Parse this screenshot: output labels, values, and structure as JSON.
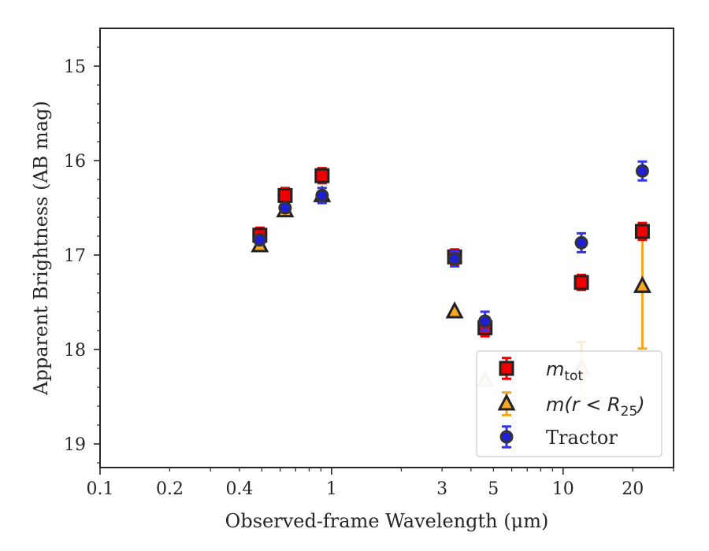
{
  "chart_data": {
    "type": "scatter",
    "title": "",
    "xlabel": "Observed-frame Wavelength (μm)",
    "ylabel": "Apparent Brightness (AB mag)",
    "xscale": "log",
    "xlim": [
      0.1,
      30
    ],
    "ylim": [
      19.25,
      14.6
    ],
    "y_inverted": true,
    "grid": false,
    "legend_position": "lower-right",
    "x_ticks": [
      {
        "value": 0.1,
        "label": "0.1"
      },
      {
        "value": 0.2,
        "label": "0.2"
      },
      {
        "value": 0.4,
        "label": "0.4"
      },
      {
        "value": 1,
        "label": "1"
      },
      {
        "value": 3,
        "label": "3"
      },
      {
        "value": 5,
        "label": "5"
      },
      {
        "value": 10,
        "label": "10"
      },
      {
        "value": 20,
        "label": "20"
      }
    ],
    "y_ticks": [
      {
        "value": 15,
        "label": "15"
      },
      {
        "value": 16,
        "label": "16"
      },
      {
        "value": 17,
        "label": "17"
      },
      {
        "value": 18,
        "label": "18"
      },
      {
        "value": 19,
        "label": "19"
      }
    ],
    "series": [
      {
        "name": "m_tot",
        "marker": "square",
        "face_color": "#ee0000",
        "edge_color": "#222222",
        "error_color": "#ee0000",
        "points": [
          {
            "x": 0.49,
            "y": 16.79,
            "err": 0.08
          },
          {
            "x": 0.63,
            "y": 16.37,
            "err": 0.08
          },
          {
            "x": 0.91,
            "y": 16.16,
            "err": 0.08
          },
          {
            "x": 3.4,
            "y": 17.02,
            "err": 0.08
          },
          {
            "x": 4.6,
            "y": 17.77,
            "err": 0.09
          },
          {
            "x": 12.0,
            "y": 17.29,
            "err": 0.08
          },
          {
            "x": 22.0,
            "y": 16.75,
            "err": 0.09
          }
        ]
      },
      {
        "name": "m(r < R25)",
        "marker": "triangle",
        "face_color": "#f5a623",
        "edge_color": "#222222",
        "error_color": "#f5a623",
        "points": [
          {
            "x": 0.49,
            "y": 16.9,
            "err": 0.0
          },
          {
            "x": 0.63,
            "y": 16.53,
            "err": 0.0
          },
          {
            "x": 0.91,
            "y": 16.37,
            "err": 0.0
          },
          {
            "x": 3.4,
            "y": 17.6,
            "err": 0.0
          },
          {
            "x": 4.6,
            "y": 18.33,
            "err": 0.0,
            "faded": true
          },
          {
            "x": 12.0,
            "y": 18.2,
            "err": 0.28,
            "faded": true
          },
          {
            "x": 22.0,
            "y": 17.33,
            "err": 0.66
          }
        ]
      },
      {
        "name": "Tractor",
        "marker": "circle",
        "face_color": "#1f1fd6",
        "edge_color": "#333333",
        "error_color": "#3333ee",
        "points": [
          {
            "x": 0.49,
            "y": 16.84,
            "err": 0.05
          },
          {
            "x": 0.63,
            "y": 16.5,
            "err": 0.04
          },
          {
            "x": 0.91,
            "y": 16.37,
            "err": 0.08
          },
          {
            "x": 3.4,
            "y": 17.04,
            "err": 0.08
          },
          {
            "x": 4.6,
            "y": 17.7,
            "err": 0.1
          },
          {
            "x": 12.0,
            "y": 16.87,
            "err": 0.1
          },
          {
            "x": 22.0,
            "y": 16.11,
            "err": 0.1
          }
        ]
      }
    ]
  },
  "legend": {
    "entries": [
      {
        "base": "m",
        "sub": "tot",
        "tail": ""
      },
      {
        "base": "m(r < R",
        "sub": "25",
        "tail": ")"
      },
      {
        "base": "Tractor",
        "sub": "",
        "tail": ""
      }
    ]
  }
}
